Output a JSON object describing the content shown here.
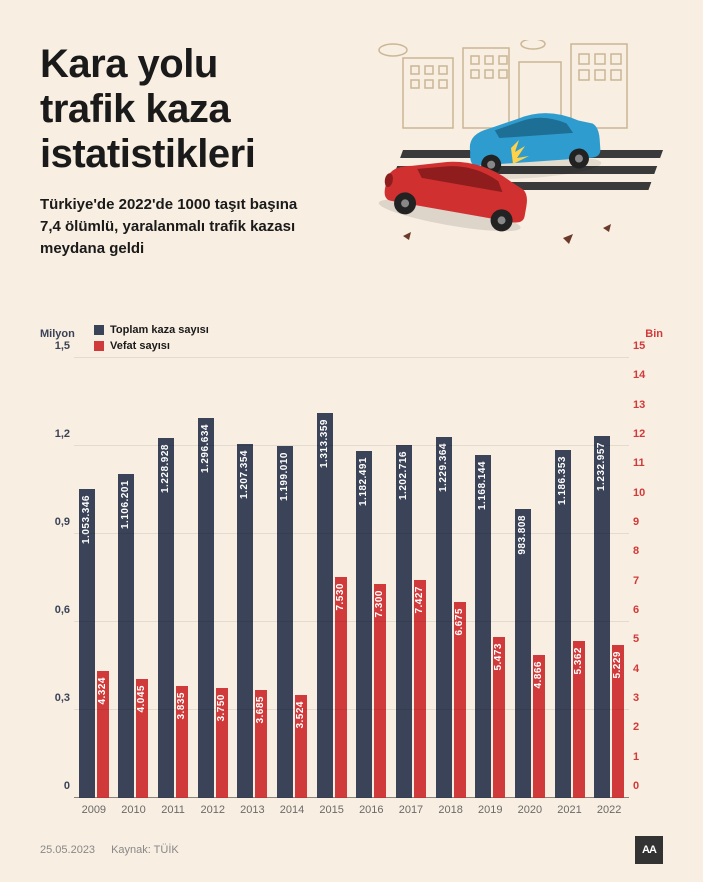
{
  "title_lines": [
    "Kara yolu",
    "trafik kaza",
    "istatistikleri"
  ],
  "subtitle": "Türkiye'de 2022'de 1000 taşıt başına 7,4 ölümlü, yaralanmalı trafik kazası meydana geldi",
  "colors": {
    "background": "#f8eee1",
    "primary_bar": "#3a4358",
    "secondary_bar": "#d13a3a",
    "text_dark": "#1a1a1a",
    "grid": "rgba(0,0,0,0.08)",
    "building": "#e8d9c4",
    "building_line": "#cbb696",
    "car_red": "#d13030",
    "car_blue": "#2f9ccf"
  },
  "legend": [
    {
      "swatch": "#3a4358",
      "label": "Toplam kaza sayısı"
    },
    {
      "swatch": "#d13a3a",
      "label": "Vefat sayısı"
    }
  ],
  "chart": {
    "type": "grouped-bar-dual-axis",
    "left_axis": {
      "label": "Milyon",
      "min": 0,
      "max": 1.5,
      "ticks": [
        "0",
        "0,3",
        "0,6",
        "0,9",
        "1,2",
        "1,5"
      ]
    },
    "right_axis": {
      "label": "Bin",
      "min": 0,
      "max": 15,
      "ticks": [
        "0",
        "1",
        "2",
        "3",
        "4",
        "5",
        "6",
        "7",
        "8",
        "9",
        "10",
        "11",
        "12",
        "13",
        "14",
        "15"
      ]
    },
    "bar_width_primary": 16,
    "bar_width_secondary": 12,
    "categories": [
      "2009",
      "2010",
      "2011",
      "2012",
      "2013",
      "2014",
      "2015",
      "2016",
      "2017",
      "2018",
      "2019",
      "2020",
      "2021",
      "2022"
    ],
    "primary_values": [
      1053346,
      1106201,
      1228928,
      1296634,
      1207354,
      1199010,
      1313359,
      1182491,
      1202716,
      1229364,
      1168144,
      983808,
      1186353,
      1232957
    ],
    "primary_labels": [
      "1.053.346",
      "1.106.201",
      "1.228.928",
      "1.296.634",
      "1.207.354",
      "1.199.010",
      "1.313.359",
      "1.182.491",
      "1.202.716",
      "1.229.364",
      "1.168.144",
      "983.808",
      "1.186.353",
      "1.232.957"
    ],
    "secondary_values": [
      4324,
      4045,
      3835,
      3750,
      3685,
      3524,
      7530,
      7300,
      7427,
      6675,
      5473,
      4866,
      5362,
      5229
    ],
    "secondary_labels": [
      "4.324",
      "4.045",
      "3.835",
      "3.750",
      "3.685",
      "3.524",
      "7.530",
      "7.300",
      "7.427",
      "6.675",
      "5.473",
      "4.866",
      "5.362",
      "5.229"
    ]
  },
  "footer": {
    "date": "25.05.2023",
    "source_prefix": "Kaynak:",
    "source": "TÜİK",
    "logo_text": "AA"
  }
}
